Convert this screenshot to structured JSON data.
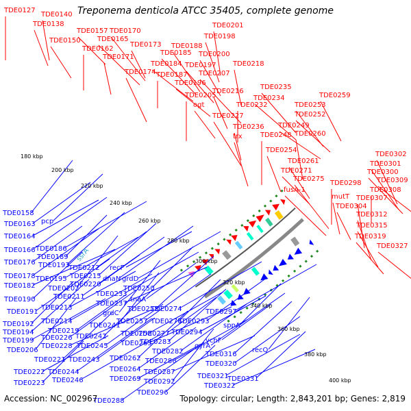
{
  "title": "Treponema denticola ATCC 35405, complete genome",
  "footer": {
    "accession": "Accession: NC_002967",
    "topology": "Topology: circular; Length: 2,843,201 bp; Genes: 2,819"
  },
  "colors": {
    "plus_strand": "#ff0000",
    "minus_strand": "#0000ff",
    "backbone": "#888888",
    "dotted_ring": "#228b22",
    "rna_label": "#33a3cc"
  },
  "scale_labels": [
    "180 kbp",
    "200 kbp",
    "220 kbp",
    "240 kbp",
    "260 kbp",
    "280 kbp",
    "300 kbp",
    "320 kbp",
    "340 kbp",
    "360 kbp",
    "380 kbp",
    "400 kbp"
  ],
  "plus_labels": [
    "TDE0127",
    "TDE0140",
    "TDE0138",
    "TDE0150",
    "TDE0157",
    "TDE0170",
    "TDE0165",
    "TDE0162",
    "TDE0171",
    "TDE0173",
    "TDE0174",
    "TDE0188",
    "TDE0185",
    "TDE0184",
    "TDE0187",
    "TDE0201",
    "TDE0198",
    "TDE0200",
    "TDE0197",
    "TDE0196",
    "TDE0207",
    "TDE0205",
    "TDE0218",
    "TDE0216",
    "ogt",
    "TDE0227",
    "TDE0235",
    "TDE0234",
    "TDE0232",
    "TDE0236",
    "trx",
    "TDE0259",
    "TDE0253",
    "TDE0252",
    "TDE0249",
    "TDE0248",
    "TDE0260",
    "TDE0254",
    "TDE0261",
    "TDE0271",
    "TDE0275",
    "fusA-1",
    "TDE0298",
    "mutT",
    "TDE0304",
    "TDE0302",
    "TDE0301",
    "TDE0300",
    "TDE0309",
    "TDE0308",
    "TDE0307",
    "TDE0312",
    "TDE0315",
    "TDE0319",
    "TDE0327"
  ],
  "minus_labels": [
    "TDE0158",
    "pcp",
    "TDE0163",
    "TDE0164",
    "TDE0166",
    "TDE0186",
    "TDE0189",
    "TDE0176",
    "TDE0193",
    "TDE0178",
    "TDE0195",
    "TDE0182",
    "TDE0202",
    "TDE0190",
    "TDE0211",
    "TDE0213",
    "TDE0191",
    "TDE0214",
    "TDE0192",
    "TDE0219",
    "TDE0194",
    "TDE0226",
    "TDE0199",
    "TDE0228",
    "TDE0206",
    "TDE0221",
    "TDE0243",
    "TDE0222",
    "TDE0244",
    "TDE0246",
    "TDE0223",
    "TDE0212",
    "TDE0215",
    "TDE0220",
    "TDE0233",
    "TDE0237",
    "TDE0241",
    "TDE0242",
    "TDE0245",
    "recF",
    "dnaN",
    "grdD",
    "TDE0250",
    "tnaA",
    "TDE0255",
    "TDE0257",
    "TDE0258",
    "TDE0263",
    "grdC",
    "TDE0262",
    "TDE0264",
    "TDE0269",
    "TDE0288",
    "TDE0274",
    "TDE0276",
    "TDE0277",
    "TDE0283",
    "TDE0282",
    "TDE0286",
    "TDE0287",
    "TDE0292",
    "TDE0296",
    "TDE0293",
    "TDE0294",
    "gyrA",
    "TDE0297",
    "sppA",
    "ychF",
    "TDE0316",
    "TDE0320",
    "TDE0321",
    "TDE0322",
    "recQ",
    "TDE0331"
  ],
  "rna_labels": [
    "ssrA"
  ]
}
